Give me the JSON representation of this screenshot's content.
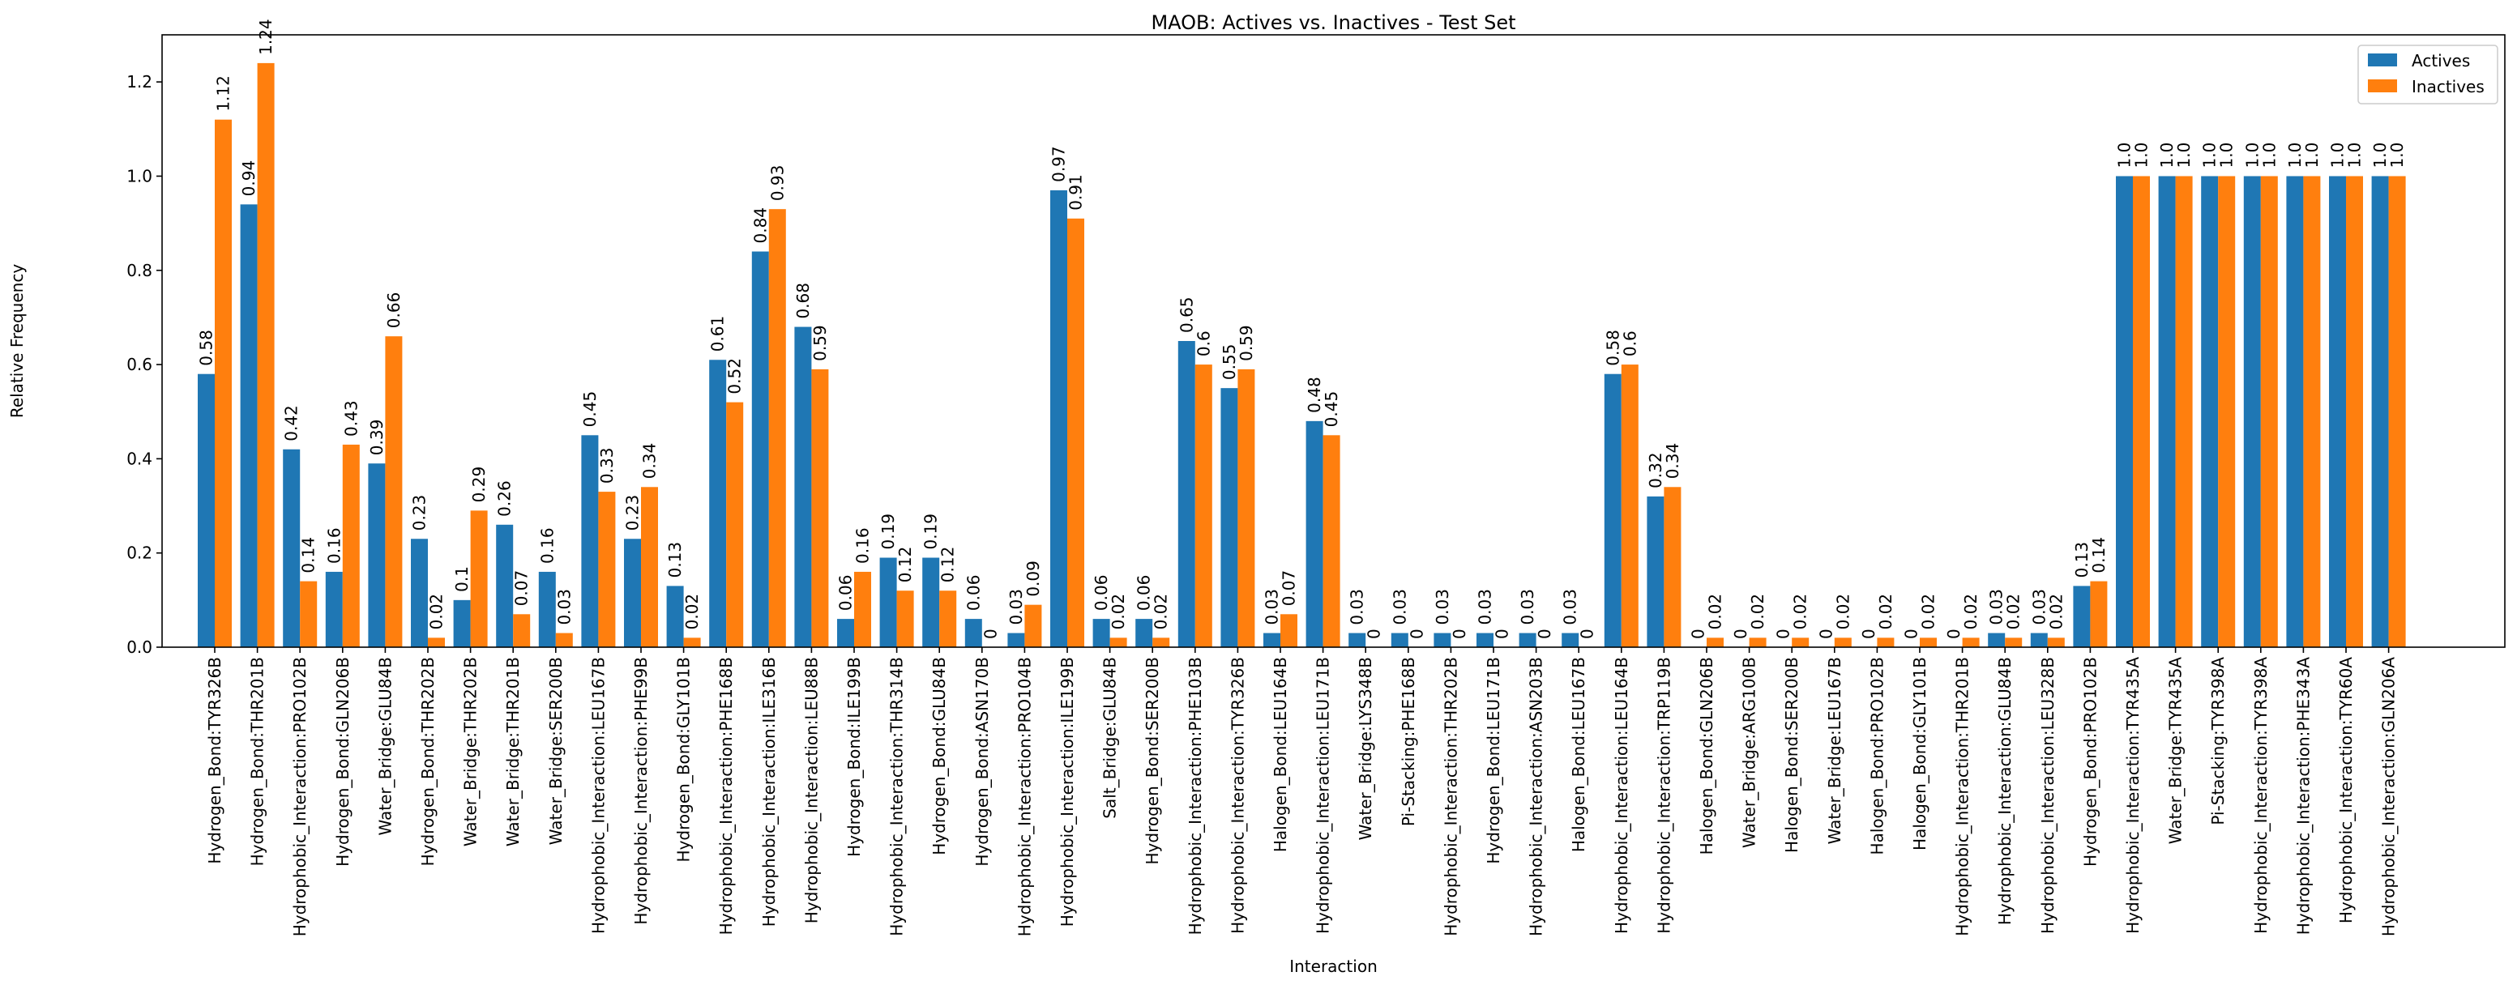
{
  "chart_data": {
    "type": "bar",
    "title": "MAOB: Actives vs. Inactives - Test Set",
    "xlabel": "Interaction",
    "ylabel": "Relative Frequency",
    "ylim": [
      0,
      1.3
    ],
    "yticks": [
      "0.0",
      "0.2",
      "0.4",
      "0.6",
      "0.8",
      "1.0",
      "1.2"
    ],
    "legend_position": "top-right",
    "grid": false,
    "categories": [
      "Hydrogen_Bond:TYR326B",
      "Hydrogen_Bond:THR201B",
      "Hydrophobic_Interaction:PRO102B",
      "Hydrogen_Bond:GLN206B",
      "Water_Bridge:GLU84B",
      "Hydrogen_Bond:THR202B",
      "Water_Bridge:THR202B",
      "Water_Bridge:THR201B",
      "Water_Bridge:SER200B",
      "Hydrophobic_Interaction:LEU167B",
      "Hydrophobic_Interaction:PHE99B",
      "Hydrogen_Bond:GLY101B",
      "Hydrophobic_Interaction:PHE168B",
      "Hydrophobic_Interaction:ILE316B",
      "Hydrophobic_Interaction:LEU88B",
      "Hydrogen_Bond:ILE199B",
      "Hydrophobic_Interaction:THR314B",
      "Hydrogen_Bond:GLU84B",
      "Hydrogen_Bond:ASN170B",
      "Hydrophobic_Interaction:PRO104B",
      "Hydrophobic_Interaction:ILE199B",
      "Salt_Bridge:GLU84B",
      "Hydrogen_Bond:SER200B",
      "Hydrophobic_Interaction:PHE103B",
      "Hydrophobic_Interaction:TYR326B",
      "Halogen_Bond:LEU164B",
      "Hydrophobic_Interaction:LEU171B",
      "Water_Bridge:LYS348B",
      "Pi-Stacking:PHE168B",
      "Hydrophobic_Interaction:THR202B",
      "Hydrogen_Bond:LEU171B",
      "Hydrophobic_Interaction:ASN203B",
      "Halogen_Bond:LEU167B",
      "Hydrophobic_Interaction:LEU164B",
      "Hydrophobic_Interaction:TRP119B",
      "Halogen_Bond:GLN206B",
      "Water_Bridge:ARG100B",
      "Halogen_Bond:SER200B",
      "Water_Bridge:LEU167B",
      "Halogen_Bond:PRO102B",
      "Halogen_Bond:GLY101B",
      "Hydrophobic_Interaction:THR201B",
      "Hydrophobic_Interaction:GLU84B",
      "Hydrophobic_Interaction:LEU328B",
      "Hydrogen_Bond:PRO102B",
      "Hydrophobic_Interaction:TYR435A",
      "Water_Bridge:TYR435A",
      "Pi-Stacking:TYR398A",
      "Hydrophobic_Interaction:TYR398A",
      "Hydrophobic_Interaction:PHE343A",
      "Hydrophobic_Interaction:TYR60A",
      "Hydrophobic_Interaction:GLN206A"
    ],
    "series": [
      {
        "name": "Actives",
        "color": "#1f77b4",
        "values": [
          0.58,
          0.94,
          0.42,
          0.16,
          0.39,
          0.23,
          0.1,
          0.26,
          0.16,
          0.45,
          0.23,
          0.13,
          0.61,
          0.84,
          0.68,
          0.06,
          0.19,
          0.19,
          0.06,
          0.03,
          0.97,
          0.06,
          0.06,
          0.65,
          0.55,
          0.03,
          0.48,
          0.03,
          0.03,
          0.03,
          0.03,
          0.03,
          0.03,
          0.58,
          0.32,
          0,
          0,
          0,
          0,
          0,
          0,
          0,
          0.03,
          0.03,
          0.13,
          1.0,
          1.0,
          1.0,
          1.0,
          1.0,
          1.0,
          1.0
        ],
        "labels": [
          "0.58",
          "0.94",
          "0.42",
          "0.16",
          "0.39",
          "0.23",
          "0.1",
          "0.26",
          "0.16",
          "0.45",
          "0.23",
          "0.13",
          "0.61",
          "0.84",
          "0.68",
          "0.06",
          "0.19",
          "0.19",
          "0.06",
          "0.03",
          "0.97",
          "0.06",
          "0.06",
          "0.65",
          "0.55",
          "0.03",
          "0.48",
          "0.03",
          "0.03",
          "0.03",
          "0.03",
          "0.03",
          "0.03",
          "0.58",
          "0.32",
          "0",
          "0",
          "0",
          "0",
          "0",
          "0",
          "0",
          "0.03",
          "0.03",
          "0.13",
          "1.0",
          "1.0",
          "1.0",
          "1.0",
          "1.0",
          "1.0",
          "1.0"
        ]
      },
      {
        "name": "Inactives",
        "color": "#ff7f0e",
        "values": [
          1.12,
          1.24,
          0.14,
          0.43,
          0.66,
          0.02,
          0.29,
          0.07,
          0.03,
          0.33,
          0.34,
          0.02,
          0.52,
          0.93,
          0.59,
          0.16,
          0.12,
          0.12,
          0,
          0.09,
          0.91,
          0.02,
          0.02,
          0.6,
          0.59,
          0.07,
          0.45,
          0,
          0,
          0,
          0,
          0,
          0,
          0.6,
          0.34,
          0.02,
          0.02,
          0.02,
          0.02,
          0.02,
          0.02,
          0.02,
          0.02,
          0.02,
          0.14,
          1.0,
          1.0,
          1.0,
          1.0,
          1.0,
          1.0,
          1.0
        ],
        "labels": [
          "1.12",
          "1.24",
          "0.14",
          "0.43",
          "0.66",
          "0.02",
          "0.29",
          "0.07",
          "0.03",
          "0.33",
          "0.34",
          "0.02",
          "0.52",
          "0.93",
          "0.59",
          "0.16",
          "0.12",
          "0.12",
          "0",
          "0.09",
          "0.91",
          "0.02",
          "0.02",
          "0.6",
          "0.59",
          "0.07",
          "0.45",
          "0",
          "0",
          "0",
          "0",
          "0",
          "0",
          "0.6",
          "0.34",
          "0.02",
          "0.02",
          "0.02",
          "0.02",
          "0.02",
          "0.02",
          "0.02",
          "0.02",
          "0.02",
          "0.14",
          "1.0",
          "1.0",
          "1.0",
          "1.0",
          "1.0",
          "1.0",
          "1.0"
        ]
      }
    ]
  }
}
